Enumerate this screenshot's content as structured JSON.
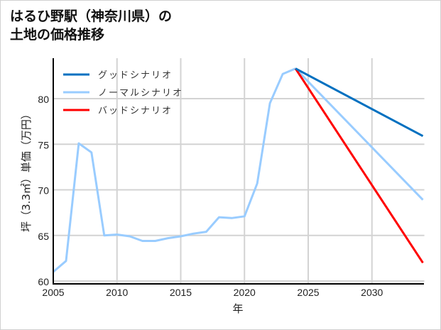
{
  "title": "はるひ野駅（神奈川県）の\n土地の価格推移",
  "chart_data": {
    "type": "line",
    "title": "はるひ野駅（神奈川県）の土地の価格推移",
    "xlabel": "年",
    "ylabel": "坪（3.3㎡）単価（万円）",
    "xlim": [
      2005,
      2034
    ],
    "ylim": [
      60,
      84.5
    ],
    "xticks": [
      2005,
      2010,
      2015,
      2020,
      2025,
      2030
    ],
    "yticks": [
      60,
      65,
      70,
      75,
      80
    ],
    "grid": true,
    "legend_position": "upper left",
    "series": [
      {
        "name": "ノーマルシナリオ",
        "role": "history",
        "color": "#99ccff",
        "x": [
          2005,
          2006,
          2007,
          2008,
          2009,
          2010,
          2011,
          2012,
          2013,
          2014,
          2015,
          2016,
          2017,
          2018,
          2019,
          2020,
          2021,
          2022,
          2023,
          2024
        ],
        "values": [
          61.0,
          62.2,
          75.1,
          74.1,
          65.0,
          65.1,
          64.9,
          64.4,
          64.4,
          64.7,
          64.9,
          65.2,
          65.4,
          67.0,
          66.9,
          67.1,
          70.7,
          79.5,
          82.7,
          83.3
        ]
      },
      {
        "name": "グッドシナリオ",
        "color": "#0070c0",
        "x": [
          2024,
          2034
        ],
        "values": [
          83.3,
          75.9
        ]
      },
      {
        "name": "ノーマルシナリオ",
        "color": "#99ccff",
        "x": [
          2024,
          2034
        ],
        "values": [
          83.3,
          68.9
        ]
      },
      {
        "name": "バッドシナリオ",
        "color": "#ff0000",
        "x": [
          2024,
          2034
        ],
        "values": [
          83.3,
          62.0
        ]
      }
    ]
  },
  "legend": [
    {
      "label": "グッドシナリオ",
      "color": "#0070c0"
    },
    {
      "label": "ノーマルシナリオ",
      "color": "#99ccff"
    },
    {
      "label": "バッドシナリオ",
      "color": "#ff0000"
    }
  ]
}
